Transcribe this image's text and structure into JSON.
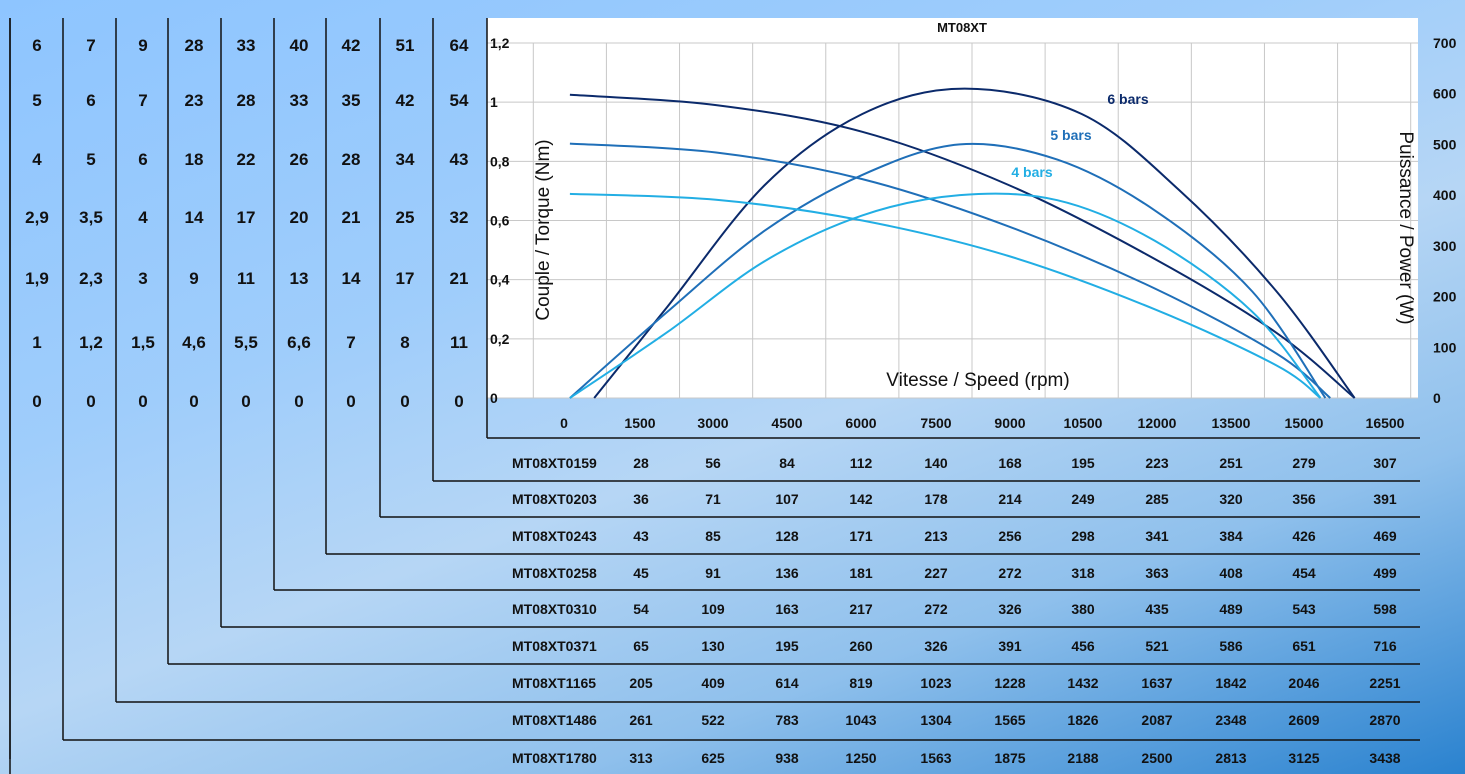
{
  "colors": {
    "bars6": "#0b2a6b",
    "bars5": "#1f6fb8",
    "bars4": "#22aee4",
    "grid": "#c8c8c8",
    "ink": "#111111"
  },
  "left_table": {
    "columns": [
      [
        "6",
        "5",
        "4",
        "2,9",
        "1,9",
        "1",
        "0"
      ],
      [
        "7",
        "6",
        "5",
        "3,5",
        "2,3",
        "1,2",
        "0"
      ],
      [
        "9",
        "7",
        "6",
        "4",
        "3",
        "1,5",
        "0"
      ],
      [
        "28",
        "23",
        "18",
        "14",
        "9",
        "4,6",
        "0"
      ],
      [
        "33",
        "28",
        "22",
        "17",
        "11",
        "5,5",
        "0"
      ],
      [
        "40",
        "33",
        "26",
        "20",
        "13",
        "6,6",
        "0"
      ],
      [
        "42",
        "35",
        "28",
        "21",
        "14",
        "7",
        "0"
      ],
      [
        "51",
        "42",
        "34",
        "25",
        "17",
        "8",
        "0"
      ],
      [
        "64",
        "54",
        "43",
        "32",
        "21",
        "11",
        "0"
      ]
    ]
  },
  "bottom_table": {
    "rows": [
      {
        "model": "MT08XT0159",
        "values": [
          "28",
          "56",
          "84",
          "112",
          "140",
          "168",
          "195",
          "223",
          "251",
          "279",
          "307"
        ]
      },
      {
        "model": "MT08XT0203",
        "values": [
          "36",
          "71",
          "107",
          "142",
          "178",
          "214",
          "249",
          "285",
          "320",
          "356",
          "391"
        ]
      },
      {
        "model": "MT08XT0243",
        "values": [
          "43",
          "85",
          "128",
          "171",
          "213",
          "256",
          "298",
          "341",
          "384",
          "426",
          "469"
        ]
      },
      {
        "model": "MT08XT0258",
        "values": [
          "45",
          "91",
          "136",
          "181",
          "227",
          "272",
          "318",
          "363",
          "408",
          "454",
          "499"
        ]
      },
      {
        "model": "MT08XT0310",
        "values": [
          "54",
          "109",
          "163",
          "217",
          "272",
          "326",
          "380",
          "435",
          "489",
          "543",
          "598"
        ]
      },
      {
        "model": "MT08XT0371",
        "values": [
          "65",
          "130",
          "195",
          "260",
          "326",
          "391",
          "456",
          "521",
          "586",
          "651",
          "716"
        ]
      },
      {
        "model": "MT08XT1165",
        "values": [
          "205",
          "409",
          "614",
          "819",
          "1023",
          "1228",
          "1432",
          "1637",
          "1842",
          "2046",
          "2251"
        ]
      },
      {
        "model": "MT08XT1486",
        "values": [
          "261",
          "522",
          "783",
          "1043",
          "1304",
          "1565",
          "1826",
          "2087",
          "2348",
          "2609",
          "2870"
        ]
      },
      {
        "model": "MT08XT1780",
        "values": [
          "313",
          "625",
          "938",
          "1250",
          "1563",
          "1875",
          "2188",
          "2500",
          "2813",
          "3125",
          "3438"
        ]
      }
    ]
  },
  "chart_data": {
    "type": "line",
    "title": "MT08XT",
    "xlabel": "Vitesse / Speed (rpm)",
    "ylabel": "Couple / Torque (Nm)",
    "y2label": "Puissance / Power (W)",
    "xlim": [
      -1700,
      17400
    ],
    "ylim": [
      0,
      1.2
    ],
    "y2lim": [
      0,
      700
    ],
    "x_ticks": [
      "0",
      "1500",
      "3000",
      "4500",
      "6000",
      "7500",
      "9000",
      "10500",
      "12000",
      "13500",
      "15000",
      "16500"
    ],
    "y_ticks": [
      "0",
      "0,2",
      "0,4",
      "0,6",
      "0,8",
      "1",
      "1,2"
    ],
    "y2_ticks": [
      "0",
      "100",
      "200",
      "300",
      "400",
      "500",
      "600",
      "700"
    ],
    "grid": true,
    "series": [
      {
        "name": "6 bars",
        "color": "#0b2a6b",
        "torque": [
          [
            0,
            1.025
          ],
          [
            3000,
            0.99
          ],
          [
            6000,
            0.9
          ],
          [
            9000,
            0.72
          ],
          [
            12000,
            0.47
          ],
          [
            14500,
            0.22
          ],
          [
            16100,
            0
          ]
        ],
        "power": [
          [
            500,
            0
          ],
          [
            2000,
            180
          ],
          [
            4000,
            420
          ],
          [
            6000,
            560
          ],
          [
            8100,
            610
          ],
          [
            10500,
            560
          ],
          [
            12500,
            410
          ],
          [
            14500,
            210
          ],
          [
            16100,
            0
          ]
        ]
      },
      {
        "name": "5 bars",
        "color": "#1f6fb8",
        "torque": [
          [
            0,
            0.86
          ],
          [
            3000,
            0.83
          ],
          [
            6000,
            0.74
          ],
          [
            9000,
            0.58
          ],
          [
            12000,
            0.37
          ],
          [
            14500,
            0.15
          ],
          [
            15600,
            0
          ]
        ],
        "power": [
          [
            0,
            0
          ],
          [
            2000,
            170
          ],
          [
            4000,
            330
          ],
          [
            6000,
            440
          ],
          [
            8000,
            500
          ],
          [
            10000,
            470
          ],
          [
            12000,
            370
          ],
          [
            14000,
            210
          ],
          [
            15500,
            0
          ]
        ]
      },
      {
        "name": "4 bars",
        "color": "#22aee4",
        "torque": [
          [
            0,
            0.69
          ],
          [
            3000,
            0.67
          ],
          [
            6000,
            0.6
          ],
          [
            9000,
            0.48
          ],
          [
            12000,
            0.3
          ],
          [
            14500,
            0.11
          ],
          [
            15400,
            0
          ]
        ],
        "power": [
          [
            0,
            0
          ],
          [
            2000,
            130
          ],
          [
            4000,
            270
          ],
          [
            6000,
            360
          ],
          [
            8000,
            400
          ],
          [
            10000,
            390
          ],
          [
            12000,
            310
          ],
          [
            14000,
            170
          ],
          [
            15400,
            0
          ]
        ]
      }
    ]
  }
}
